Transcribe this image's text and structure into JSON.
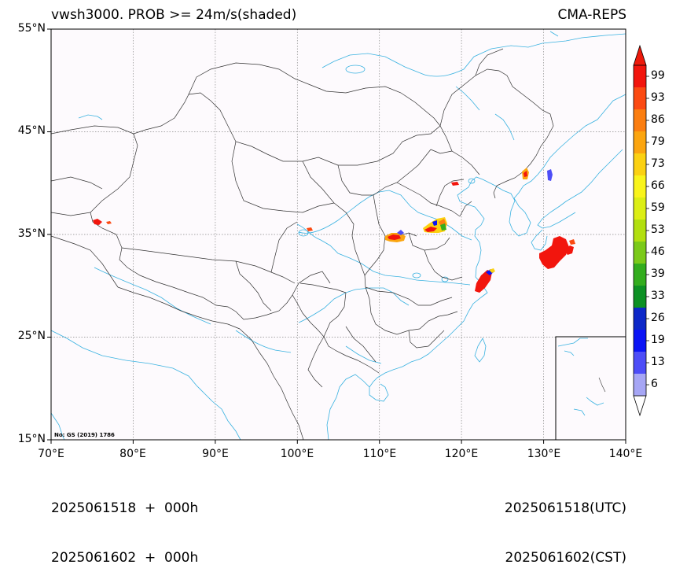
{
  "header": {
    "title": "vwsh3000. PROB >= 24m/s(shaded)",
    "source": "CMA-REPS"
  },
  "map": {
    "lat_labels": [
      "55°N",
      "45°N",
      "35°N",
      "25°N",
      "15°N"
    ],
    "lon_labels": [
      "70°E",
      "80°E",
      "90°E",
      "100°E",
      "110°E",
      "120°E",
      "130°E",
      "140°E"
    ],
    "lat_range": [
      15,
      55
    ],
    "lon_range": [
      70,
      140
    ],
    "gridlines": true,
    "inset_map": "South China Sea",
    "note": "No: GS (2019) 1786",
    "colors": {
      "background": "#fdfafd",
      "border": "#333333",
      "coast_river": "#39b2e0",
      "grid": "#888888"
    },
    "shaded_areas": [
      {
        "region": "Bohai / Beijing area",
        "lon": 118.2,
        "lat": 40.0
      },
      {
        "region": "NE Korea coast",
        "lon": 127.7,
        "lat": 40.5
      },
      {
        "region": "East Sea",
        "lon": 129.9,
        "lat": 40.2
      },
      {
        "region": "Shaanxi/Henan",
        "lon": 111.2,
        "lat": 34.6
      },
      {
        "region": "Shandong",
        "lon": 116.8,
        "lat": 35.4
      },
      {
        "region": "Yellow Sea / East China Sea",
        "lon": 131.5,
        "lat": 32.6
      },
      {
        "region": "Zhejiang coast",
        "lon": 122.0,
        "lat": 30.0
      },
      {
        "region": "Western Tibet",
        "lon": 73.5,
        "lat": 36.2
      }
    ]
  },
  "colorbar": {
    "labels": [
      "99",
      "93",
      "86",
      "79",
      "73",
      "66",
      "59",
      "53",
      "46",
      "39",
      "33",
      "26",
      "19",
      "13",
      "6"
    ],
    "colors": [
      "#f2150d",
      "#fb4a12",
      "#fb7e10",
      "#fba50f",
      "#fbd112",
      "#f9f41b",
      "#dcee15",
      "#b2df0f",
      "#7bca19",
      "#33ad1e",
      "#0d9124",
      "#0d28c8",
      "#0b14f5",
      "#4d4df7",
      "#a6a6f5"
    ],
    "top_arrow_color": "#ed1a0b"
  },
  "footer": {
    "left_line1": "2025061518  +  000h",
    "left_line2": "2025061602  +  000h",
    "right_line1": "2025061518(UTC)",
    "right_line2": "2025061602(CST)"
  }
}
